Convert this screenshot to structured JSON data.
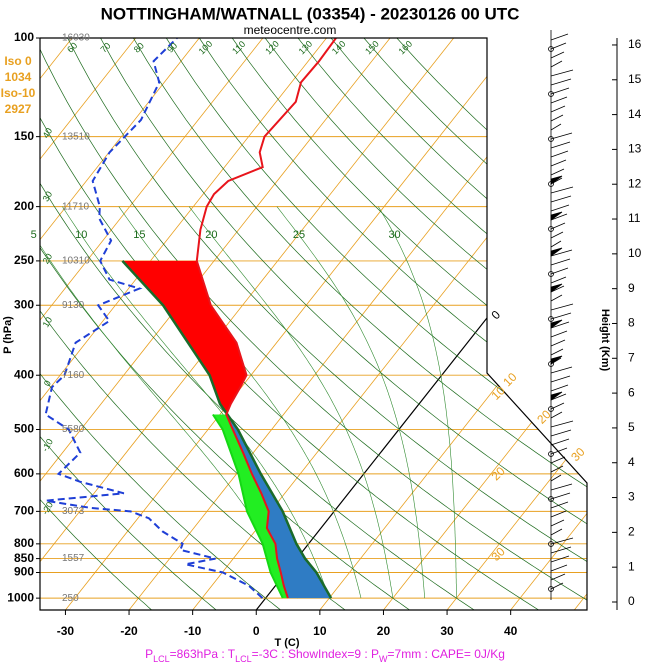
{
  "chart_data": {
    "type": "skewt",
    "title": "NOTTINGHAM/WATNALL (03354) - 20230126 00 UTC",
    "subtitle": "meteocentre.com",
    "ylabel": "P (hPa)",
    "xlabel": "T (C)",
    "y2label": "Height (Km)",
    "log_y": true,
    "ylim": [
      1050,
      100
    ],
    "yticks": [
      100,
      150,
      200,
      250,
      300,
      400,
      500,
      600,
      700,
      800,
      850,
      900,
      1000
    ],
    "xlim": [
      -34,
      52
    ],
    "xticks": [
      -30,
      -20,
      -10,
      0,
      10,
      20,
      30,
      40
    ],
    "y2lim": [
      -0.23,
      16.2
    ],
    "y2ticks": [
      0,
      1,
      2,
      3,
      4,
      5,
      6,
      7,
      8,
      9,
      10,
      11,
      12,
      13,
      14,
      15,
      16
    ],
    "geopotential_heights": {
      "pressure": [
        100,
        150,
        200,
        250,
        300,
        400,
        500,
        700,
        850,
        1000
      ],
      "values": [
        16030,
        13510,
        11710,
        10310,
        9130,
        7160,
        5580,
        3073,
        1557,
        250
      ]
    },
    "freezing_levels": [
      {
        "label": "Iso 0",
        "value": 1034
      },
      {
        "label": "Iso-10",
        "value": 2927
      }
    ],
    "isotherm_labels_right": [
      30,
      20,
      10,
      0
    ],
    "isotherm_labels_diagonal": [
      10,
      20,
      30
    ],
    "dry_adiabat_labels_top": [
      50,
      60,
      70,
      80,
      90,
      100,
      110,
      120,
      130,
      140,
      150,
      160
    ],
    "dry_adiabat_labels_left": [
      40,
      30,
      20,
      10,
      0,
      -10,
      -20
    ],
    "moist_adiabat_labels": [
      5,
      10,
      15,
      20,
      25,
      30
    ],
    "series": [
      {
        "color": "#e8141b",
        "pressure": [
          1000,
          950,
          900,
          850,
          800,
          750,
          700,
          650,
          600,
          550,
          500,
          470,
          450,
          420,
          400,
          350,
          300,
          250,
          220,
          200,
          190,
          180,
          170,
          160,
          150,
          130,
          120,
          110,
          100
        ],
        "values": [
          3.5,
          1.3,
          -0.8,
          -3.1,
          -5.2,
          -8.5,
          -10.3,
          -13.7,
          -17.6,
          -21.6,
          -26.1,
          -29,
          -29.6,
          -30.2,
          -30.7,
          -36.3,
          -45,
          -52.7,
          -56,
          -57.9,
          -58.3,
          -57.7,
          -54,
          -56.3,
          -57.5,
          -56.9,
          -58.5,
          -58.3,
          -58.5
        ]
      },
      {
        "color": "#1f3fd6",
        "dashed": true,
        "pressure": [
          1000,
          950,
          900,
          870,
          850,
          820,
          800,
          760,
          720,
          700,
          690,
          670,
          650,
          620,
          600,
          550,
          500,
          470,
          420,
          400,
          350,
          320,
          300,
          280,
          270,
          250,
          230,
          210,
          200,
          180,
          160,
          140,
          120,
          110,
          100
        ],
        "values": [
          -0.5,
          -4.2,
          -9.9,
          -16.8,
          -12.8,
          -19.4,
          -19.8,
          -24.5,
          -28.3,
          -32,
          -38.7,
          -46.7,
          -35.3,
          -43.6,
          -48,
          -47.2,
          -51.9,
          -57.4,
          -59.8,
          -59.3,
          -61.6,
          -59,
          -62.7,
          -58.3,
          -64.1,
          -67.9,
          -68.7,
          -73.3,
          -74.7,
          -79,
          -79.9,
          -79,
          -80.8,
          -84.3,
          -83.5
        ]
      },
      {
        "color": "#1a6b2a",
        "pressure": [
          1000,
          900,
          850,
          800,
          700,
          600,
          500,
          450,
          400,
          300,
          250
        ],
        "values": [
          10.3,
          4.8,
          1.3,
          -1.9,
          -8.1,
          -16.2,
          -25.3,
          -31.3,
          -36.5,
          -52.5,
          -64.4
        ]
      },
      {
        "color": "#14d814",
        "pressure": [
          1000,
          900,
          800,
          700,
          600,
          500,
          470
        ],
        "values": [
          2.7,
          -2.4,
          -7.2,
          -13.7,
          -19.7,
          -27.7,
          -31.1
        ]
      }
    ],
    "fill_colors": {
      "cin": "#ff0000",
      "cape": "#2f7cc4",
      "moist": "#22ee22"
    },
    "footer": [
      "P",
      "LCL",
      "=863hPa : T",
      "LCL",
      "=-3C : ShowIndex=9 : P",
      "W",
      "=7mm : CAPE= 0J/Kg"
    ]
  }
}
